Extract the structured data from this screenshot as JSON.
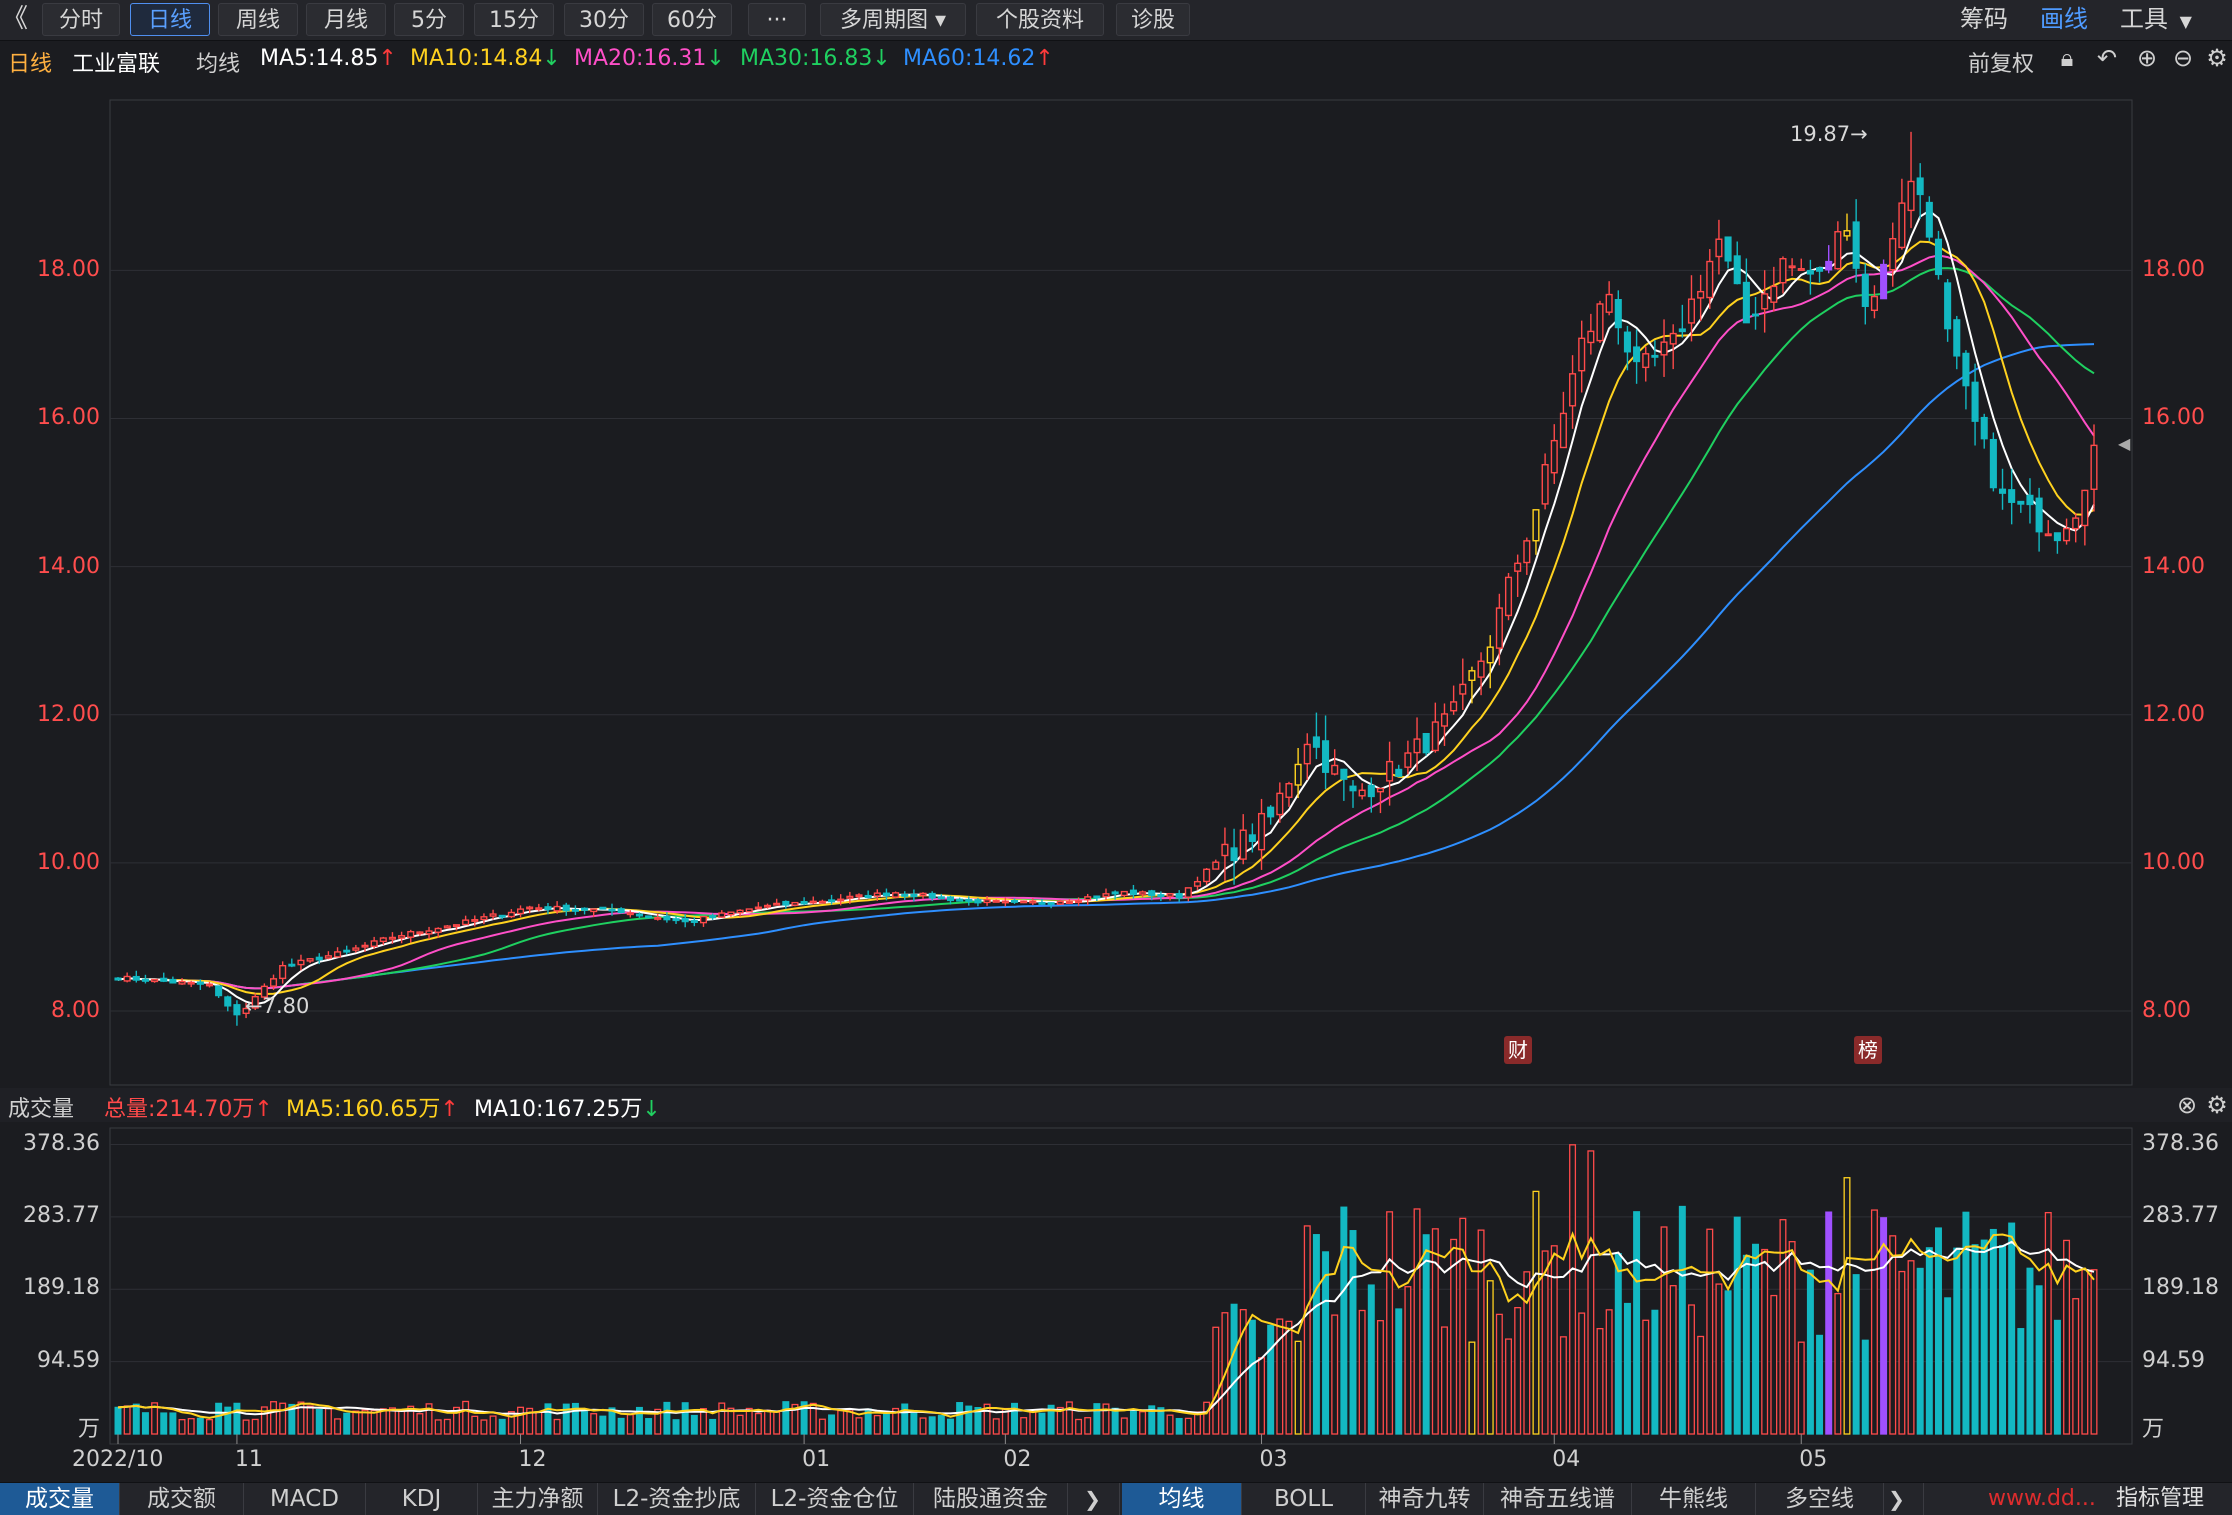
{
  "toolbar": {
    "back_icon": "double-chevron-left-icon",
    "tabs": [
      {
        "label": "分时",
        "active": false
      },
      {
        "label": "日线",
        "active": true
      },
      {
        "label": "周线",
        "active": false
      },
      {
        "label": "月线",
        "active": false
      },
      {
        "label": "5分",
        "active": false
      },
      {
        "label": "15分",
        "active": false
      },
      {
        "label": "30分",
        "active": false
      },
      {
        "label": "60分",
        "active": false
      },
      {
        "label": "···",
        "active": false
      },
      {
        "label": "多周期图 ▾",
        "active": false
      },
      {
        "label": "个股资料",
        "active": false
      },
      {
        "label": "诊股",
        "active": false
      }
    ],
    "right": {
      "chips": "筹码",
      "draw": "画线",
      "tools": "工具"
    }
  },
  "info": {
    "period": "日线",
    "stock_name": "工业富联",
    "ma_label": "均线",
    "ma5": "MA5:14.85",
    "ma10": "MA10:14.84",
    "ma20": "MA20:16.31",
    "ma30": "MA30:16.83",
    "ma60": "MA60:14.62",
    "restore": "前复权"
  },
  "colors": {
    "up": "#ff4a4a",
    "down": "#13b8c2",
    "ma5": "#ffffff",
    "ma10": "#ffd21f",
    "ma20": "#ff4fc8",
    "ma30": "#1fd060",
    "ma60": "#2e8fff",
    "limit": "#ffd21f",
    "highlight": "#a050ff"
  },
  "price_axis": {
    "labels": [
      "18.00",
      "16.00",
      "14.00",
      "12.00",
      "10.00",
      "8.00"
    ],
    "ticks": [
      18,
      16,
      14,
      12,
      10,
      8
    ],
    "min": 7.0,
    "max": 20.3
  },
  "annotations": {
    "high": "19.87→",
    "low": "←7.80",
    "marker_fin": "财",
    "marker_rank": "榜"
  },
  "volume_info": {
    "title": "成交量",
    "total": "总量:214.70万",
    "ma5": "MA5:160.65万",
    "ma10": "MA10:167.25万"
  },
  "volume_axis": {
    "labels": [
      "378.36",
      "283.77",
      "189.18",
      "94.59",
      "万"
    ],
    "ticks": [
      378.36,
      283.77,
      189.18,
      94.59
    ],
    "max": 400
  },
  "date_axis": [
    "2022/10",
    "11",
    "12",
    "01",
    "02",
    "03",
    "04",
    "05"
  ],
  "bottom_tabs_left": [
    "成交量",
    "成交额",
    "MACD",
    "KDJ",
    "主力净额",
    "L2-资金抄底",
    "L2-资金仓位",
    "陆股通资金"
  ],
  "bottom_tabs_right": [
    "均线",
    "BOLL",
    "神奇九转",
    "神奇五线谱",
    "牛熊线",
    "多空线"
  ],
  "bottom_right_label": "指标管理",
  "watermark": "www.dd...",
  "chart_data": [
    {
      "type": "candlestick",
      "title": "工业富联 日线",
      "y_range": [
        7.0,
        20.3
      ],
      "x_labels": [
        "2022/10",
        "11",
        "12",
        "01",
        "02",
        "03",
        "04",
        "05"
      ],
      "series_names": [
        "MA5",
        "MA10",
        "MA20",
        "MA30",
        "MA60"
      ],
      "key_points": {
        "high": 19.87,
        "low": 7.8
      },
      "ma_last": {
        "MA5": 14.85,
        "MA10": 14.84,
        "MA20": 16.31,
        "MA30": 16.83,
        "MA60": 14.62
      },
      "anchors": [
        [
          0,
          8.45
        ],
        [
          10,
          8.35
        ],
        [
          13,
          7.9
        ],
        [
          18,
          8.6
        ],
        [
          25,
          8.8
        ],
        [
          30,
          9.0
        ],
        [
          38,
          9.2
        ],
        [
          45,
          9.4
        ],
        [
          55,
          9.35
        ],
        [
          62,
          9.2
        ],
        [
          70,
          9.4
        ],
        [
          78,
          9.5
        ],
        [
          85,
          9.6
        ],
        [
          92,
          9.5
        ],
        [
          98,
          9.45
        ],
        [
          104,
          9.5
        ],
        [
          110,
          9.6
        ],
        [
          116,
          9.55
        ],
        [
          120,
          10.0
        ],
        [
          126,
          10.6
        ],
        [
          130,
          11.7
        ],
        [
          135,
          10.9
        ],
        [
          140,
          11.3
        ],
        [
          146,
          12.0
        ],
        [
          150,
          13.0
        ],
        [
          155,
          14.8
        ],
        [
          160,
          17.0
        ],
        [
          163,
          17.7
        ],
        [
          166,
          16.6
        ],
        [
          170,
          17.0
        ],
        [
          175,
          18.4
        ],
        [
          178,
          17.3
        ],
        [
          182,
          18.1
        ],
        [
          186,
          17.9
        ],
        [
          189,
          18.7
        ],
        [
          191,
          17.5
        ],
        [
          193,
          18.0
        ],
        [
          196,
          19.5
        ],
        [
          198,
          18.6
        ],
        [
          200,
          17.1
        ],
        [
          203,
          15.9
        ],
        [
          206,
          14.9
        ],
        [
          209,
          14.7
        ],
        [
          212,
          14.5
        ],
        [
          214,
          14.8
        ],
        [
          216,
          15.6
        ]
      ]
    },
    {
      "type": "bar",
      "title": "成交量",
      "y_range": [
        0,
        400
      ],
      "series_names": [
        "MA5",
        "MA10"
      ],
      "total": 214.7,
      "ma5_last": 160.65,
      "ma10_last": 167.25
    }
  ]
}
